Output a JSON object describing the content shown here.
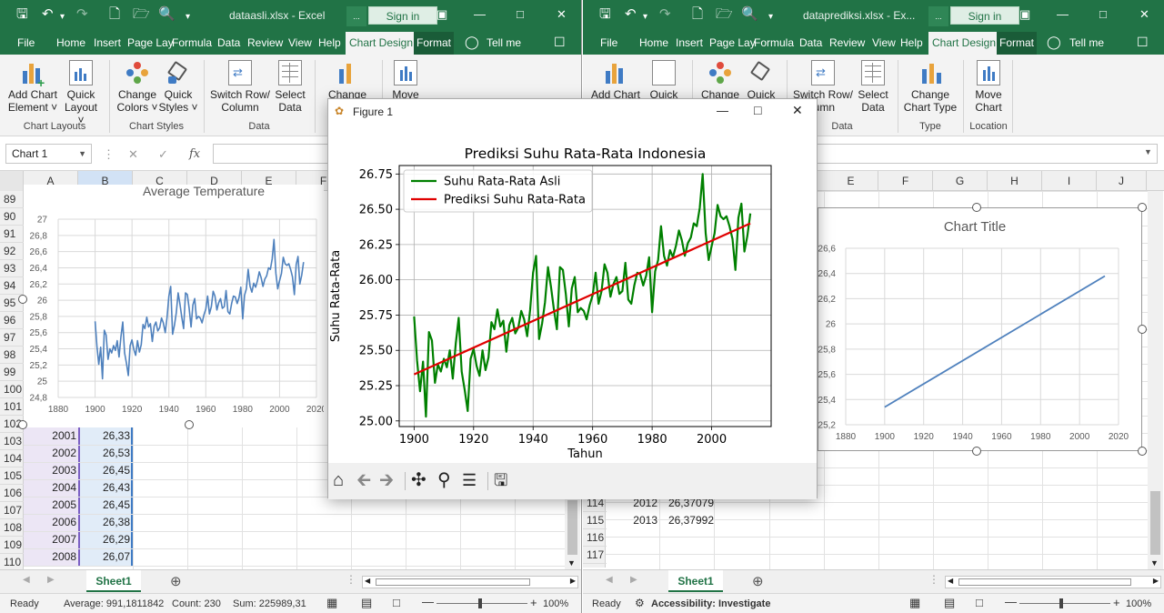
{
  "left_window": {
    "title": "dataasli.xlsx - Excel",
    "signin": "Sign in",
    "search_short": "...",
    "tabs": [
      "File",
      "Home",
      "Insert",
      "Page Lay",
      "Formula",
      "Data",
      "Review",
      "View",
      "Help",
      "Chart Design",
      "Format"
    ],
    "tell_me": "Tell me",
    "ribbon": {
      "add_chart": [
        "Add Chart",
        "Element ˅"
      ],
      "quick_layout": [
        "Quick",
        "Layout ˅"
      ],
      "change_colors": [
        "Change",
        "Colors ˅"
      ],
      "quick_styles": [
        "Quick",
        "Styles ˅"
      ],
      "switch_row": [
        "Switch Row/",
        "Column"
      ],
      "select_data": [
        "Select",
        "Data"
      ],
      "change_chart": [
        "Change"
      ],
      "move_chart": [
        "Move"
      ],
      "groups": [
        "Chart Layouts",
        "Chart Styles",
        "Data"
      ]
    },
    "name_box": "Chart 1",
    "columns": [
      "A",
      "B",
      "C",
      "D",
      "E",
      "F"
    ],
    "rows": [
      "89",
      "90",
      "91",
      "92",
      "93",
      "94",
      "95",
      "96",
      "97",
      "98",
      "99",
      "100",
      "101",
      "102",
      "103",
      "104",
      "105",
      "106",
      "107",
      "108",
      "109",
      "110"
    ],
    "chart_title": "Average Temperature",
    "chart_data": {
      "type": "line",
      "title": "Average Temperature",
      "xlim": [
        1880,
        2020
      ],
      "ylim": [
        24.8,
        27
      ],
      "x_ticks": [
        "1880",
        "1900",
        "1920",
        "1940",
        "1960",
        "1980",
        "2000",
        "2020"
      ],
      "y_ticks": [
        "24,8",
        "25",
        "25,2",
        "25,4",
        "25,6",
        "25,8",
        "26",
        "26,2",
        "26,4",
        "26,6",
        "26,8",
        "27"
      ],
      "grid": true
    },
    "cells": [
      {
        "year": "2001",
        "value": "26,33"
      },
      {
        "year": "2002",
        "value": "26,53"
      },
      {
        "year": "2003",
        "value": "26,45"
      },
      {
        "year": "2004",
        "value": "26,43"
      },
      {
        "year": "2005",
        "value": "26,45"
      },
      {
        "year": "2006",
        "value": "26,38"
      },
      {
        "year": "2007",
        "value": "26,29"
      },
      {
        "year": "2008",
        "value": "26,07"
      }
    ],
    "sheet_tab": "Sheet1",
    "status": {
      "ready": "Ready",
      "average": "Average: 991,1811842",
      "count": "Count: 230",
      "sum": "Sum: 225989,31",
      "zoom": "100%"
    }
  },
  "right_window": {
    "title": "dataprediksi.xlsx - Ex...",
    "signin": "Sign in",
    "search_short": "...",
    "tabs": [
      "File",
      "Home",
      "Insert",
      "Page Lay",
      "Formula",
      "Data",
      "Review",
      "View",
      "Help",
      "Chart Design",
      "Format"
    ],
    "tell_me": "Tell me",
    "ribbon": {
      "add_chart": [
        "Add Chart"
      ],
      "quick_layout": [
        "Quick"
      ],
      "change_colors": [
        "Change"
      ],
      "quick_styles": [
        "Quick"
      ],
      "switch_row": [
        "Switch Row/",
        "lumn"
      ],
      "select_data": [
        "Select",
        "Data"
      ],
      "change_chart": [
        "Change",
        "Chart Type"
      ],
      "move_chart": [
        "Move",
        "Chart"
      ],
      "groups": [
        "Data",
        "Type",
        "Location"
      ]
    },
    "columns": [
      "E",
      "F",
      "G",
      "H",
      "I",
      "J"
    ],
    "chart_title": "Chart Title",
    "chart_data": {
      "type": "line",
      "title": "Chart Title",
      "x": [
        1900,
        2013
      ],
      "values": [
        25.34,
        26.38
      ],
      "xlim": [
        1880,
        2020
      ],
      "ylim": [
        25.2,
        26.6
      ],
      "x_ticks": [
        "1880",
        "1900",
        "1920",
        "1940",
        "1960",
        "1980",
        "2000",
        "2020"
      ],
      "y_ticks": [
        "25,2",
        "25,4",
        "25,6",
        "25,8",
        "26",
        "26,2",
        "26,4",
        "26,6"
      ],
      "grid": true
    },
    "rows_visible": [
      "114",
      "115",
      "116",
      "117"
    ],
    "cells": [
      {
        "year": "2012",
        "value": "26,37079"
      },
      {
        "year": "2013",
        "value": "26,37992"
      }
    ],
    "sheet_tab": "Sheet1",
    "status": {
      "ready": "Ready",
      "accessibility": "Accessibility: Investigate",
      "zoom": "100%"
    }
  },
  "figure_window": {
    "title": "Figure 1",
    "chart_data": {
      "type": "line",
      "title": "Prediksi Suhu Rata-Rata Indonesia",
      "xlabel": "Tahun",
      "ylabel": "Suhu Rata-Rata",
      "xlim": [
        1895,
        2020
      ],
      "ylim": [
        24.96,
        26.81
      ],
      "x_ticks": [
        1900,
        1920,
        1940,
        1960,
        1980,
        2000
      ],
      "y_ticks": [
        25.0,
        25.25,
        25.5,
        25.75,
        26.0,
        26.25,
        26.5,
        26.75
      ],
      "grid": true,
      "legend_position": "top-left",
      "series": [
        {
          "name": "Suhu Rata-Rata Asli",
          "color": "#008000",
          "x": [
            1900,
            1901,
            1902,
            1903,
            1904,
            1905,
            1906,
            1907,
            1908,
            1909,
            1910,
            1911,
            1912,
            1913,
            1914,
            1915,
            1916,
            1917,
            1918,
            1919,
            1920,
            1921,
            1922,
            1923,
            1924,
            1925,
            1926,
            1927,
            1928,
            1929,
            1930,
            1931,
            1932,
            1933,
            1934,
            1935,
            1936,
            1937,
            1938,
            1939,
            1940,
            1941,
            1942,
            1943,
            1944,
            1945,
            1946,
            1947,
            1948,
            1949,
            1950,
            1951,
            1952,
            1953,
            1954,
            1955,
            1956,
            1957,
            1958,
            1959,
            1960,
            1961,
            1962,
            1963,
            1964,
            1965,
            1966,
            1967,
            1968,
            1969,
            1970,
            1971,
            1972,
            1973,
            1974,
            1975,
            1976,
            1977,
            1978,
            1979,
            1980,
            1981,
            1982,
            1983,
            1984,
            1985,
            1986,
            1987,
            1988,
            1989,
            1990,
            1991,
            1992,
            1993,
            1994,
            1995,
            1996,
            1997,
            1998,
            1999,
            2000,
            2001,
            2002,
            2003,
            2004,
            2005,
            2006,
            2007,
            2008,
            2009,
            2010,
            2011,
            2012,
            2013
          ],
          "values": [
            25.74,
            25.43,
            25.21,
            25.42,
            25.03,
            25.63,
            25.57,
            25.27,
            25.4,
            25.35,
            25.44,
            25.38,
            25.5,
            25.3,
            25.55,
            25.73,
            25.35,
            25.22,
            25.07,
            25.44,
            25.51,
            25.39,
            25.32,
            25.5,
            25.36,
            25.45,
            25.7,
            25.65,
            25.79,
            25.67,
            25.71,
            25.49,
            25.68,
            25.73,
            25.62,
            25.66,
            25.78,
            25.72,
            25.6,
            25.79,
            26.05,
            26.17,
            25.58,
            25.69,
            25.84,
            26.09,
            25.95,
            25.79,
            25.65,
            26.09,
            26.07,
            25.9,
            25.67,
            25.94,
            26.02,
            25.77,
            25.8,
            25.78,
            25.72,
            25.82,
            25.89,
            26.05,
            25.83,
            25.92,
            26.11,
            26.05,
            25.88,
            25.97,
            26.02,
            25.9,
            25.92,
            26.12,
            25.86,
            25.83,
            25.96,
            26.05,
            26.04,
            25.96,
            26.03,
            26.16,
            25.77,
            26.06,
            26.14,
            26.38,
            26.17,
            26.1,
            26.21,
            26.16,
            26.24,
            26.35,
            26.28,
            26.17,
            26.26,
            26.3,
            26.4,
            26.38,
            26.51,
            26.75,
            26.33,
            26.14,
            26.24,
            26.33,
            26.53,
            26.45,
            26.43,
            26.45,
            26.38,
            26.29,
            26.07,
            26.44,
            26.54,
            26.2,
            26.31,
            26.47
          ]
        },
        {
          "name": "Prediksi Suhu Rata-Rata",
          "color": "#e00000",
          "x": [
            1900,
            2013
          ],
          "values": [
            25.33,
            26.4
          ]
        }
      ]
    }
  }
}
